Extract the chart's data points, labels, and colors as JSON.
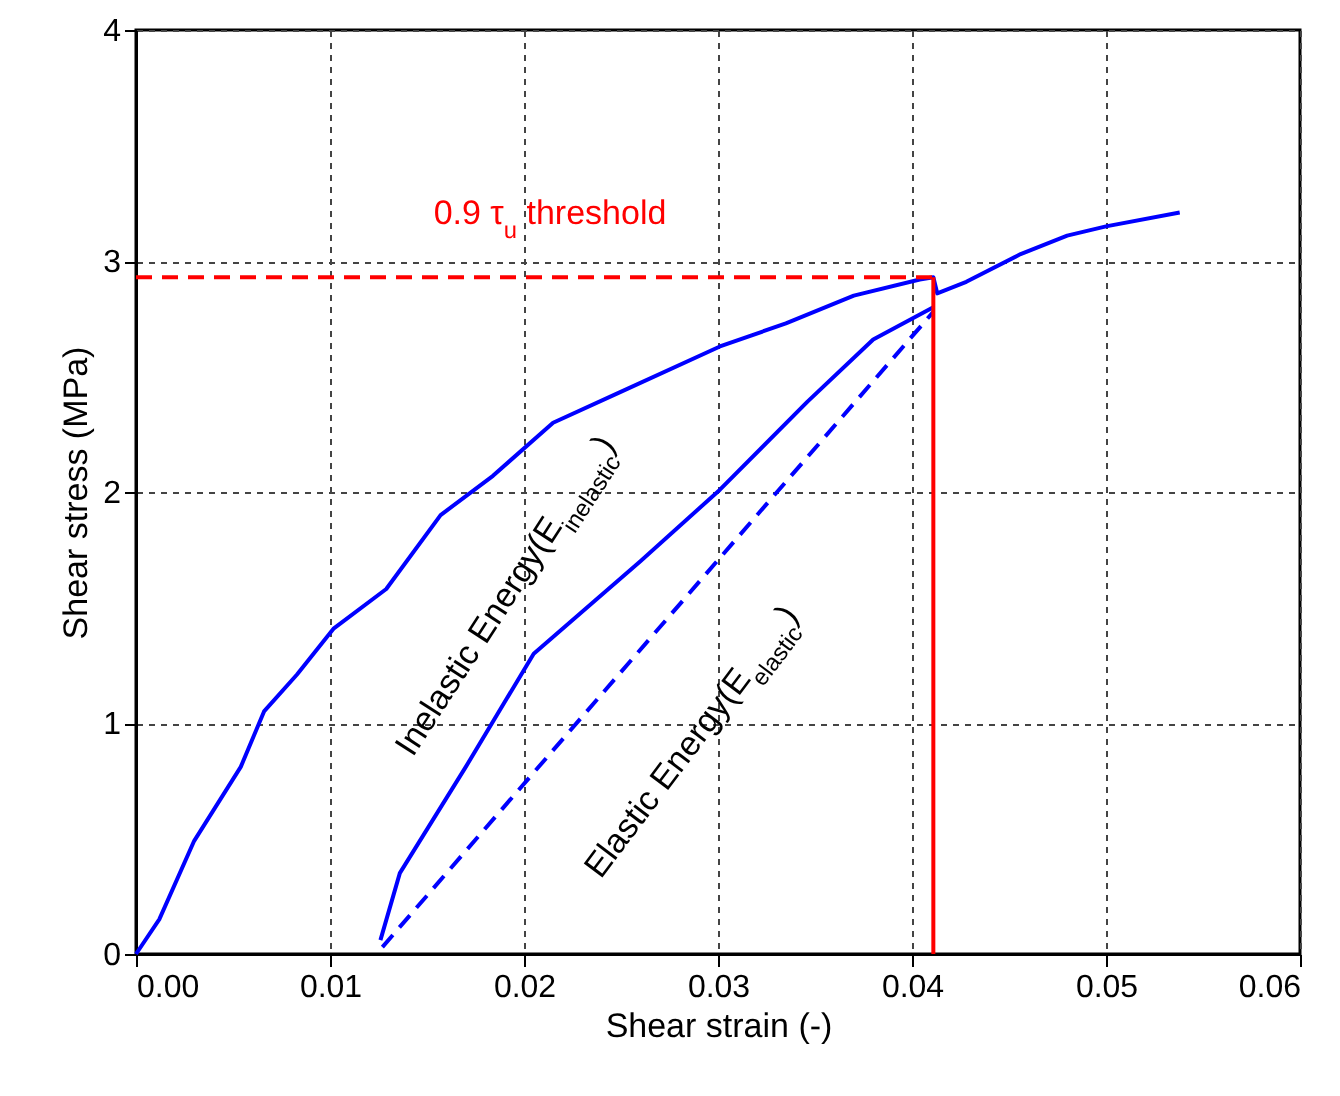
{
  "chart_data": {
    "type": "line",
    "xlabel": "Shear strain (-)",
    "ylabel": "Shear stress (MPa)",
    "xlim": [
      0,
      0.06
    ],
    "ylim": [
      0,
      4
    ],
    "xticks": [
      {
        "value": 0,
        "label": "0.00"
      },
      {
        "value": 0.01,
        "label": "0.01"
      },
      {
        "value": 0.02,
        "label": "0.02"
      },
      {
        "value": 0.03,
        "label": "0.03"
      },
      {
        "value": 0.04,
        "label": "0.04"
      },
      {
        "value": 0.05,
        "label": "0.05"
      },
      {
        "value": 0.06,
        "label": "0.06"
      }
    ],
    "yticks": [
      0,
      1,
      2,
      3,
      4
    ],
    "grid": true,
    "series": [
      {
        "color": "#0000ff",
        "line_style": "solid",
        "x": [
          0,
          0.0012,
          0.003,
          0.0054,
          0.0066,
          0.0083,
          0.0102,
          0.0129,
          0.0157,
          0.0184,
          0.0215,
          0.0249,
          0.0301,
          0.0335,
          0.037,
          0.0404,
          0.0411,
          0.0413,
          0.0428,
          0.0456,
          0.048,
          0.05,
          0.0538
        ],
        "values": [
          0,
          0.15,
          0.49,
          0.81,
          1.05,
          1.21,
          1.41,
          1.58,
          1.9,
          2.07,
          2.3,
          2.43,
          2.63,
          2.73,
          2.85,
          2.92,
          2.93,
          2.86,
          2.91,
          3.03,
          3.11,
          3.15,
          3.21
        ]
      },
      {
        "color": "#0000ff",
        "line_style": "solid",
        "x": [
          0.0411,
          0.038,
          0.0346,
          0.0301,
          0.026,
          0.0205,
          0.017,
          0.0136,
          0.0126
        ],
        "values": [
          2.8,
          2.66,
          2.39,
          2.01,
          1.7,
          1.3,
          0.81,
          0.35,
          0.06
        ]
      },
      {
        "color": "#0000ff",
        "line_style": "dashed",
        "x": [
          0.0127,
          0.0411
        ],
        "values": [
          0.03,
          2.78
        ]
      },
      {
        "color": "#ff0000",
        "line_style": "solid",
        "x": [
          0.0411,
          0.0411
        ],
        "values": [
          0,
          2.93
        ]
      },
      {
        "color": "#ff0000",
        "line_style": "dashed",
        "x": [
          0,
          0.0411
        ],
        "values": [
          2.93,
          2.93
        ]
      }
    ],
    "annotations": [
      "0.9 τ$_{u}$ threshold",
      "Inelastic Energy(E$_{inelastic}$)",
      "Elastic Energy(E$_{elastic}$)"
    ]
  }
}
